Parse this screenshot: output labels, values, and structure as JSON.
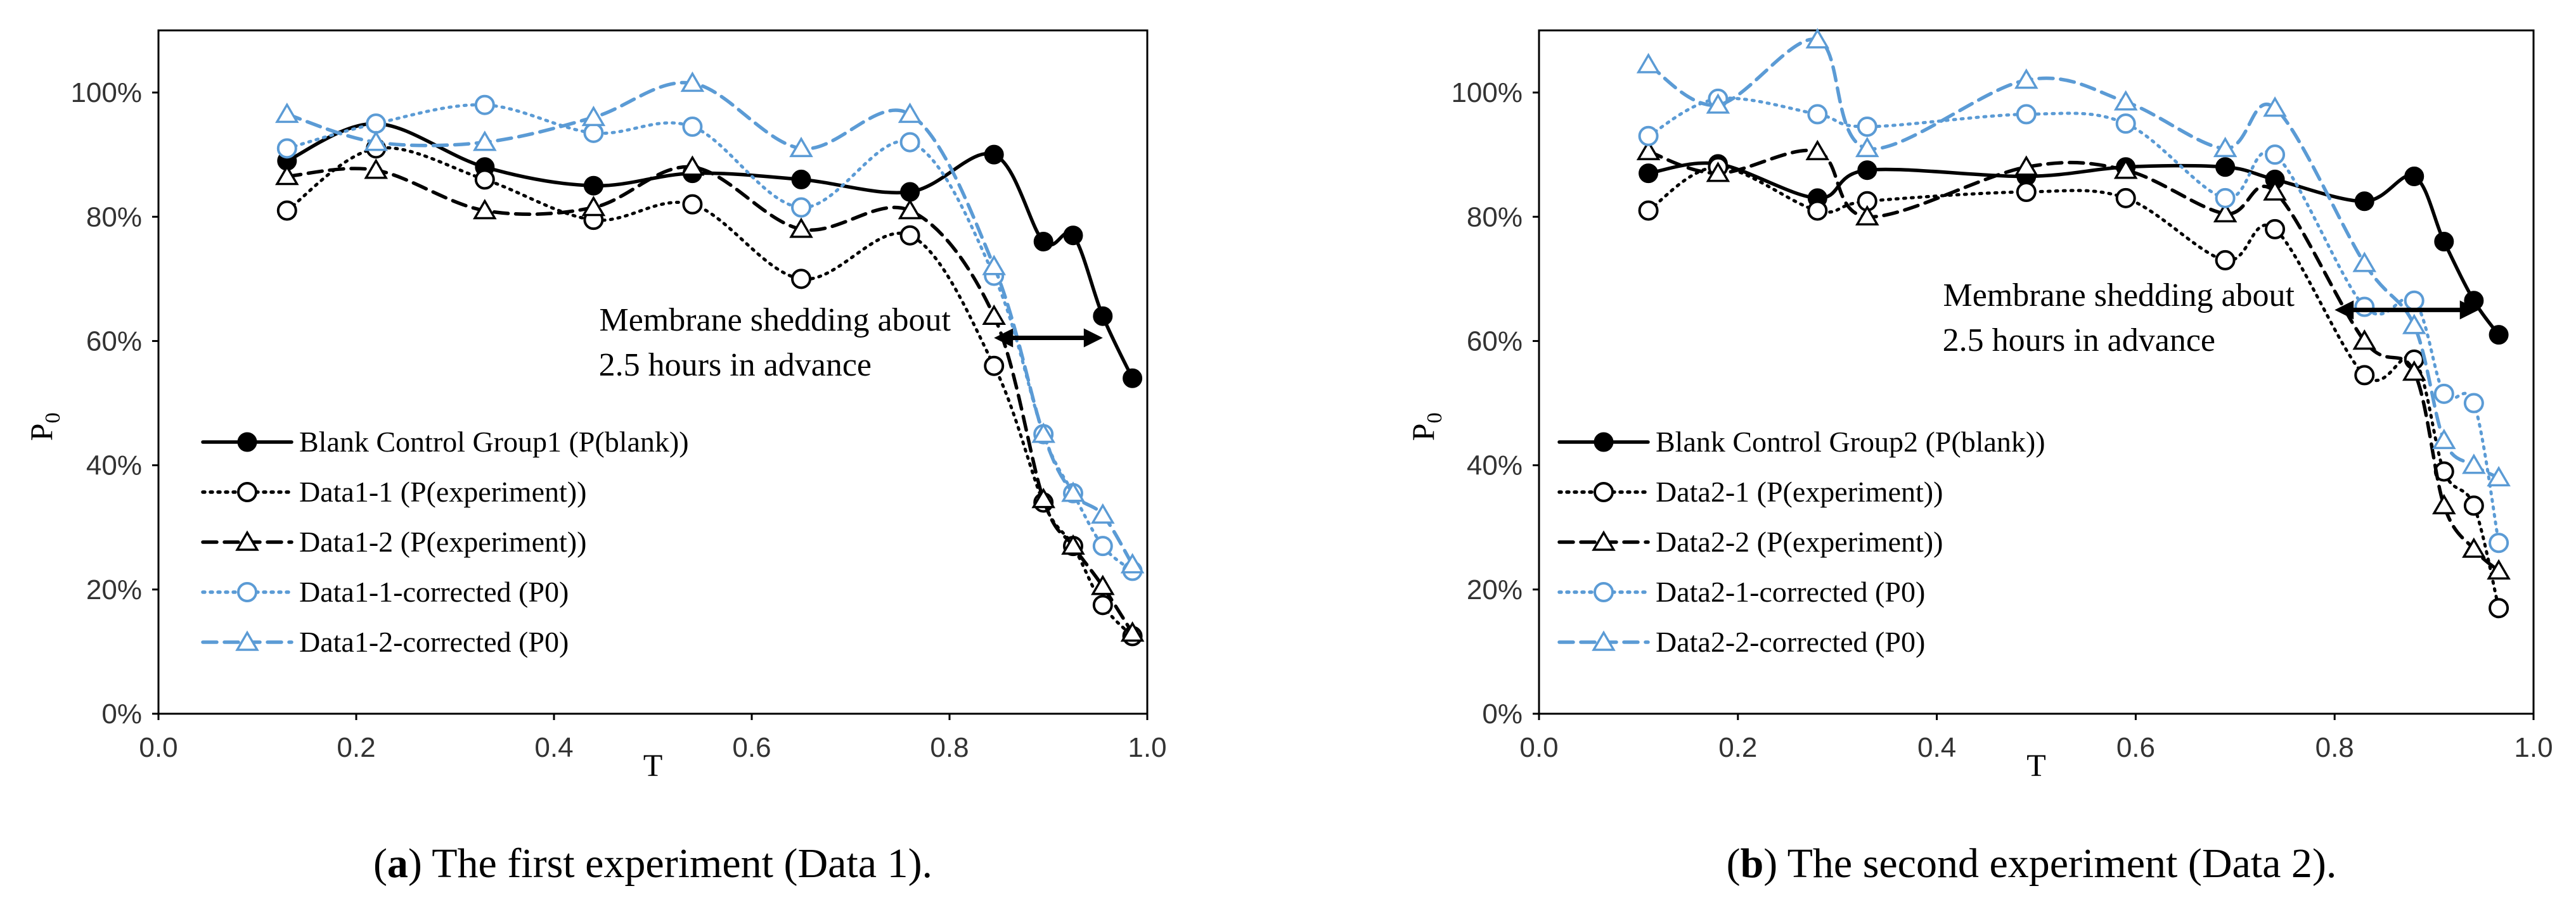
{
  "chart_data": [
    {
      "type": "line",
      "caption_letter": "a",
      "caption_text": ") The first experiment (Data 1).",
      "ylabel": "P",
      "ylabel_sub": "0",
      "xlabel": "T",
      "xlim": [
        0,
        1
      ],
      "ylim": [
        0,
        110
      ],
      "grid": false,
      "x_ticks": [
        "0.0",
        "0.2",
        "0.4",
        "0.6",
        "0.8",
        "1.0"
      ],
      "y_ticks": [
        "0%",
        "20%",
        "40%",
        "60%",
        "80%",
        "100%"
      ],
      "annotation": [
        "Membrane shedding about",
        "2.5 hours in advance"
      ],
      "legend_location": "lower-left",
      "series": [
        {
          "name": "Blank Control Group1 (P(blank))",
          "color": "#000000",
          "dash": "solid",
          "marker": "filled-circle",
          "x": [
            0.13,
            0.22,
            0.33,
            0.44,
            0.54,
            0.65,
            0.76,
            0.845,
            0.895,
            0.925,
            0.955,
            0.985
          ],
          "y": [
            89,
            95,
            88,
            85,
            87,
            86,
            84,
            90,
            76,
            77,
            64,
            54
          ]
        },
        {
          "name": "Data1-1 (P(experiment))",
          "color": "#000000",
          "dash": "dotted",
          "marker": "open-circle",
          "x": [
            0.13,
            0.22,
            0.33,
            0.44,
            0.54,
            0.65,
            0.76,
            0.845,
            0.895,
            0.925,
            0.955,
            0.985
          ],
          "y": [
            81,
            91,
            86,
            79.5,
            82,
            70,
            77,
            56,
            34,
            27,
            17.5,
            12.5
          ]
        },
        {
          "name": "Data1-2 (P(experiment))",
          "color": "#000000",
          "dash": "dashed",
          "marker": "open-triangle",
          "x": [
            0.13,
            0.22,
            0.33,
            0.44,
            0.54,
            0.65,
            0.76,
            0.845,
            0.895,
            0.925,
            0.955,
            0.985
          ],
          "y": [
            86.5,
            87.5,
            81,
            81.5,
            88,
            78,
            81,
            64,
            34.5,
            27,
            20.5,
            13
          ]
        },
        {
          "name": "Data1-1-corrected (P0)",
          "color": "#5B9BD5",
          "dash": "dotted",
          "marker": "open-circle",
          "x": [
            0.13,
            0.22,
            0.33,
            0.44,
            0.54,
            0.65,
            0.76,
            0.845,
            0.895,
            0.925,
            0.955,
            0.985
          ],
          "y": [
            91,
            95,
            98,
            93.5,
            94.5,
            81.5,
            92,
            70.5,
            45,
            35.5,
            27,
            23
          ]
        },
        {
          "name": "Data1-2-corrected (P0)",
          "color": "#5B9BD5",
          "dash": "dashed",
          "marker": "open-triangle",
          "x": [
            0.13,
            0.22,
            0.33,
            0.44,
            0.54,
            0.65,
            0.76,
            0.845,
            0.895,
            0.925,
            0.955,
            0.985
          ],
          "y": [
            96.5,
            92,
            92,
            96,
            101.5,
            91,
            96.5,
            72,
            45,
            35.5,
            32,
            24
          ]
        }
      ]
    },
    {
      "type": "line",
      "caption_letter": "b",
      "caption_text": ") The second experiment (Data 2).",
      "ylabel": "P",
      "ylabel_sub": "0",
      "xlabel": "T",
      "xlim": [
        0,
        1
      ],
      "ylim": [
        0,
        110
      ],
      "grid": false,
      "x_ticks": [
        "0.0",
        "0.2",
        "0.4",
        "0.6",
        "0.8",
        "1.0"
      ],
      "y_ticks": [
        "0%",
        "20%",
        "40%",
        "60%",
        "80%",
        "100%"
      ],
      "annotation": [
        "Membrane shedding about",
        "2.5 hours in advance"
      ],
      "legend_location": "lower-left",
      "series": [
        {
          "name": "Blank Control Group2 (P(blank))",
          "color": "#000000",
          "dash": "solid",
          "marker": "filled-circle",
          "x": [
            0.11,
            0.18,
            0.28,
            0.33,
            0.49,
            0.59,
            0.69,
            0.74,
            0.83,
            0.88,
            0.91,
            0.94,
            0.965
          ],
          "y": [
            87,
            88.5,
            83,
            87.5,
            86.5,
            88,
            88,
            86,
            82.5,
            86.5,
            76,
            66.5,
            61
          ]
        },
        {
          "name": "Data2-1 (P(experiment))",
          "color": "#000000",
          "dash": "dotted",
          "marker": "open-circle",
          "x": [
            0.11,
            0.18,
            0.28,
            0.33,
            0.49,
            0.59,
            0.69,
            0.74,
            0.83,
            0.88,
            0.91,
            0.94,
            0.965
          ],
          "y": [
            81,
            88,
            81,
            82.5,
            84,
            83,
            73,
            78,
            54.5,
            57,
            39,
            33.5,
            17
          ]
        },
        {
          "name": "Data2-2 (P(experiment))",
          "color": "#000000",
          "dash": "dashed",
          "marker": "open-triangle",
          "x": [
            0.11,
            0.18,
            0.28,
            0.33,
            0.49,
            0.59,
            0.69,
            0.74,
            0.83,
            0.88,
            0.91,
            0.94,
            0.965
          ],
          "y": [
            90.5,
            87,
            90.5,
            80,
            88,
            87.5,
            80.5,
            84,
            60,
            55,
            33.5,
            26.5,
            23
          ]
        },
        {
          "name": "Data2-1-corrected (P0)",
          "color": "#5B9BD5",
          "dash": "dotted",
          "marker": "open-circle",
          "x": [
            0.11,
            0.18,
            0.28,
            0.33,
            0.49,
            0.59,
            0.69,
            0.74,
            0.83,
            0.88,
            0.91,
            0.94,
            0.965
          ],
          "y": [
            93,
            99,
            96.5,
            94.5,
            96.5,
            95,
            83,
            90,
            65.5,
            66.5,
            51.5,
            50,
            27.5
          ]
        },
        {
          "name": "Data2-2-corrected (P0)",
          "color": "#5B9BD5",
          "dash": "dashed",
          "marker": "open-triangle",
          "x": [
            0.11,
            0.18,
            0.28,
            0.33,
            0.49,
            0.59,
            0.69,
            0.74,
            0.83,
            0.88,
            0.91,
            0.94,
            0.965
          ],
          "y": [
            104.5,
            98,
            108.5,
            91,
            102,
            98.5,
            91,
            97.5,
            72.5,
            62.5,
            44,
            40,
            38
          ]
        }
      ]
    }
  ]
}
